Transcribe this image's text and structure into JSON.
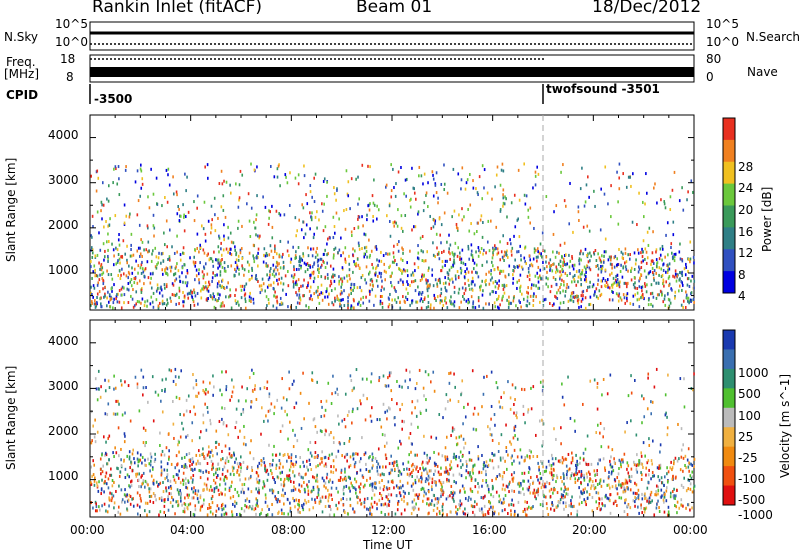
{
  "header": {
    "station": "Rankin Inlet (fitACF)",
    "beam": "Beam 01",
    "date": "18/Dec/2012"
  },
  "summary": {
    "nsky_label": "N.Sky",
    "nsearch_label": "N.Search",
    "freq_label_1": "Freq.",
    "freq_label_2": "[MHz]",
    "nave_label": "Nave",
    "cpid_label": "CPID",
    "noise_left_ticks": [
      "10^5",
      "10^0"
    ],
    "noise_right_ticks": [
      "10^5",
      "10^0"
    ],
    "freq_ticks": [
      "18",
      "8"
    ],
    "nave_ticks": [
      "80",
      "0"
    ],
    "cpid_segments": [
      {
        "start_hour": 0,
        "label": "-3500"
      },
      {
        "start_hour": 18,
        "label": "twofsound -3501"
      }
    ]
  },
  "chart_data": [
    {
      "type": "heatmap",
      "title": "",
      "xlabel": "Time UT",
      "ylabel": "Slant Range [km]",
      "colorbar_label": "Power [dB]",
      "colorbar_ticks": [
        "4",
        "8",
        "12",
        "16",
        "20",
        "24",
        "28"
      ],
      "colorbar_colors": [
        "#0000e0",
        "#3050c0",
        "#2f7f86",
        "#3a9a5a",
        "#6bc83c",
        "#f0c020",
        "#f08020",
        "#e83020"
      ],
      "x_ticks": [
        "00:00",
        "04:00",
        "08:00",
        "12:00",
        "16:00",
        "20:00",
        "00:00"
      ],
      "y_ticks": [
        "1000",
        "2000",
        "3000",
        "4000"
      ],
      "xlim": [
        0,
        24
      ],
      "ylim": [
        180,
        4500
      ]
    },
    {
      "type": "heatmap",
      "title": "",
      "xlabel": "Time UT",
      "ylabel": "Slant Range [km]",
      "colorbar_label": "Velocity [m s^-1]",
      "colorbar_ticks": [
        "-1000",
        "-500",
        "-100",
        "-25",
        "25",
        "100",
        "500",
        "1000"
      ],
      "colorbar_colors": [
        "#e01010",
        "#f05010",
        "#f08a10",
        "#f0b040",
        "#bbbbbb",
        "#50c030",
        "#2e8f70",
        "#3a6fb0",
        "#1a3ab0"
      ],
      "x_ticks": [
        "00:00",
        "04:00",
        "08:00",
        "12:00",
        "16:00",
        "20:00",
        "00:00"
      ],
      "y_ticks": [
        "1000",
        "2000",
        "3000",
        "4000"
      ],
      "xlim": [
        0,
        24
      ],
      "ylim": [
        180,
        4500
      ]
    }
  ]
}
